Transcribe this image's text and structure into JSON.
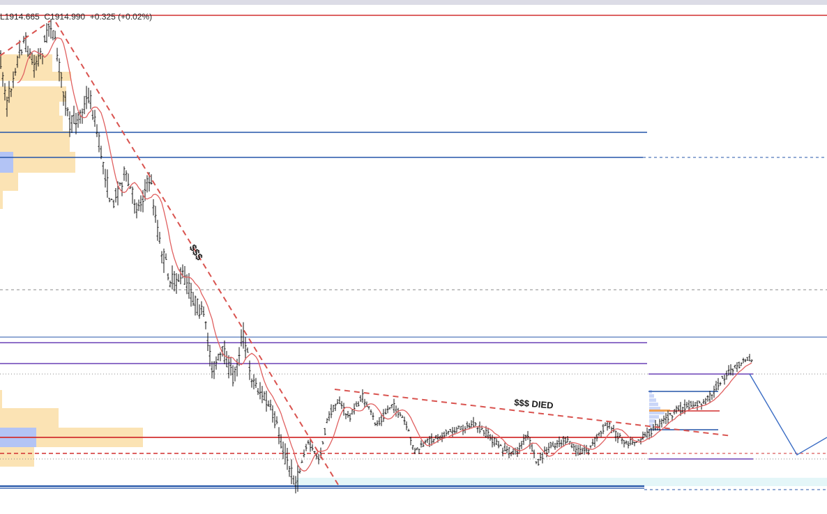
{
  "header": {
    "ohlc_text": "L1914.665  C1914.990  +0.325 (+0.02%)"
  },
  "annotations": {
    "breakout_label": "$$$",
    "died_label": "$$$ DIED"
  },
  "colors": {
    "background": "#ffffff",
    "candle": "#111111",
    "moving_average": "#e06060",
    "resistance_red": "#d22f2f",
    "trendline_dashed_red": "#d9534f",
    "level_blue": "#2455a8",
    "level_purple": "#8f6fc8",
    "volume_profile_orange": "#fbe3b4",
    "volume_profile_blue": "#b3c4f5",
    "gray_dashed": "#8a8a8a",
    "forecast_path": "#3a6cc4",
    "demand_zone": "#e4f6f8"
  },
  "chart_data": {
    "type": "line",
    "title": "",
    "xlabel": "",
    "ylabel": "",
    "instrument_last": {
      "low": 1914.665,
      "close": 1914.99,
      "change": 0.325,
      "change_pct": 0.02
    },
    "grid": false,
    "series": [
      {
        "type": "candlestick"
      },
      {
        "type": "moving-average"
      }
    ],
    "horizontal_levels": [
      {
        "style": "solid",
        "color": "red"
      },
      {
        "style": "solid",
        "color": "blue"
      },
      {
        "style": "solid",
        "color": "blue"
      },
      {
        "style": "dashed",
        "color": "gray"
      },
      {
        "style": "solid",
        "color": "blue"
      },
      {
        "style": "solid",
        "color": "purple"
      },
      {
        "style": "solid",
        "color": "purple"
      },
      {
        "style": "dotted",
        "color": "gray"
      },
      {
        "style": "solid",
        "color": "red"
      },
      {
        "style": "dashed",
        "color": "red"
      },
      {
        "style": "solid",
        "color": "blue"
      }
    ],
    "trendlines": [
      {
        "style": "dashed",
        "color": "red",
        "label": "$$$"
      },
      {
        "style": "dashed",
        "color": "red",
        "label": "$$$ DIED"
      }
    ],
    "volume_profile": {
      "placement": "left"
    },
    "forecast_path": {
      "color": "blue",
      "direction": "down then up"
    }
  }
}
